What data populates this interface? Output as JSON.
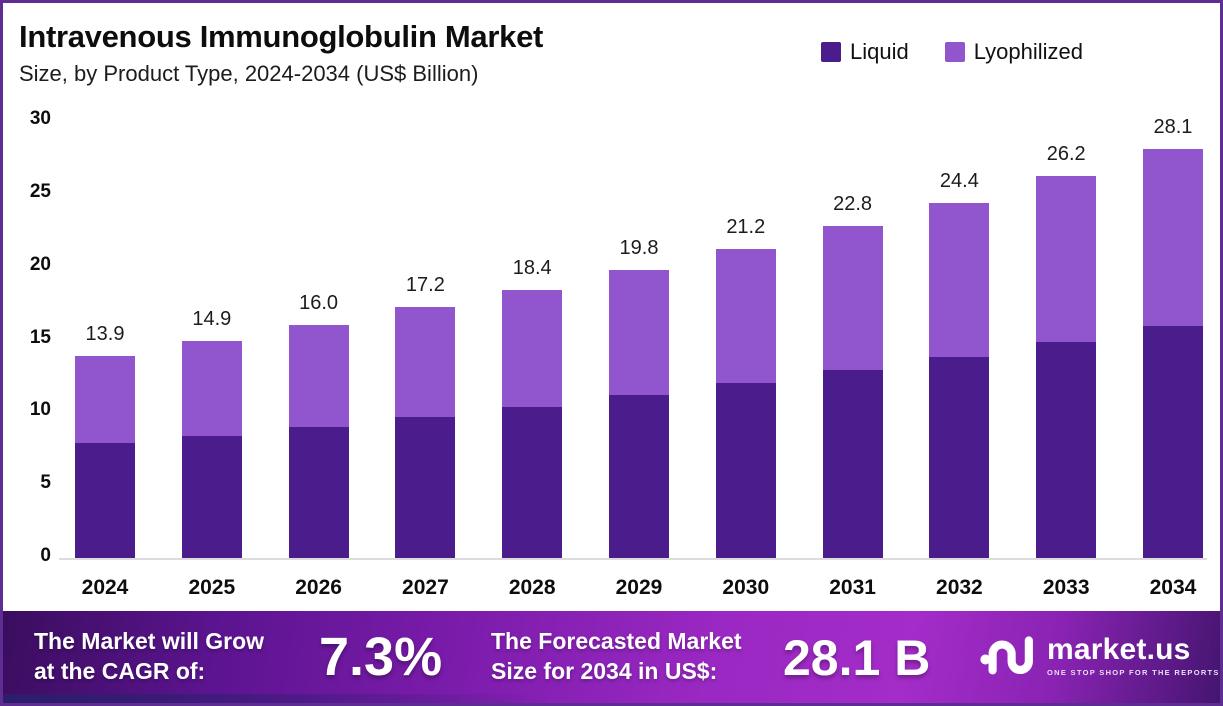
{
  "header": {
    "title": "Intravenous Immunoglobulin Market",
    "subtitle": "Size, by Product Type, 2024-2034 (US$ Billion)"
  },
  "legend": {
    "items": [
      {
        "label": "Liquid",
        "color": "#4A1C8C"
      },
      {
        "label": "Lyophilized",
        "color": "#9155CD"
      }
    ]
  },
  "chart_data": {
    "type": "bar",
    "stacked": true,
    "title": "Intravenous Immunoglobulin Market Size, by Product Type, 2024-2034 (US$ Billion)",
    "units": "US$ Billion",
    "categories": [
      "2024",
      "2025",
      "2026",
      "2027",
      "2028",
      "2029",
      "2030",
      "2031",
      "2032",
      "2033",
      "2034"
    ],
    "series": [
      {
        "name": "Liquid",
        "color": "#4A1C8C",
        "values": [
          7.9,
          8.4,
          9.0,
          9.7,
          10.4,
          11.2,
          12.0,
          12.9,
          13.8,
          14.8,
          15.9
        ]
      },
      {
        "name": "Lyophilized",
        "color": "#9155CD",
        "values": [
          6.0,
          6.5,
          7.0,
          7.5,
          8.0,
          8.6,
          9.2,
          9.9,
          10.6,
          11.4,
          12.2
        ]
      }
    ],
    "totals": [
      13.9,
      14.9,
      16.0,
      17.2,
      18.4,
      19.8,
      21.2,
      22.8,
      24.4,
      26.2,
      28.1
    ],
    "total_labels": [
      "13.9",
      "14.9",
      "16.0",
      "17.2",
      "18.4",
      "19.8",
      "21.2",
      "22.8",
      "24.4",
      "26.2",
      "28.1"
    ],
    "xlabel": "",
    "ylabel": "US$ Billion",
    "ylim": [
      0,
      30
    ],
    "yticks": [
      "0",
      "5",
      "10",
      "15",
      "20",
      "25",
      "30"
    ],
    "grid": false,
    "legend_position": "top-right"
  },
  "banner": {
    "cagr_label_line1": "The Market will Grow",
    "cagr_label_line2": "at the CAGR of:",
    "cagr_value": "7.3%",
    "forecast_label_line1": "The Forecasted Market",
    "forecast_label_line2": "Size for 2034 in US$:",
    "forecast_value": "28.1 B",
    "logo": {
      "name": "market.us",
      "tagline": "ONE STOP SHOP FOR THE REPORTS"
    }
  },
  "colors": {
    "liquid": "#4A1C8C",
    "lyophilized": "#9155CD",
    "frame_border": "#5E2D92",
    "banner_gradient_start": "#3A0D5E",
    "banner_gradient_mid": "#A42CC9",
    "banner_gradient_end": "#451570",
    "axis_line": "#DCDCDC",
    "text": "#0D0D0D"
  }
}
